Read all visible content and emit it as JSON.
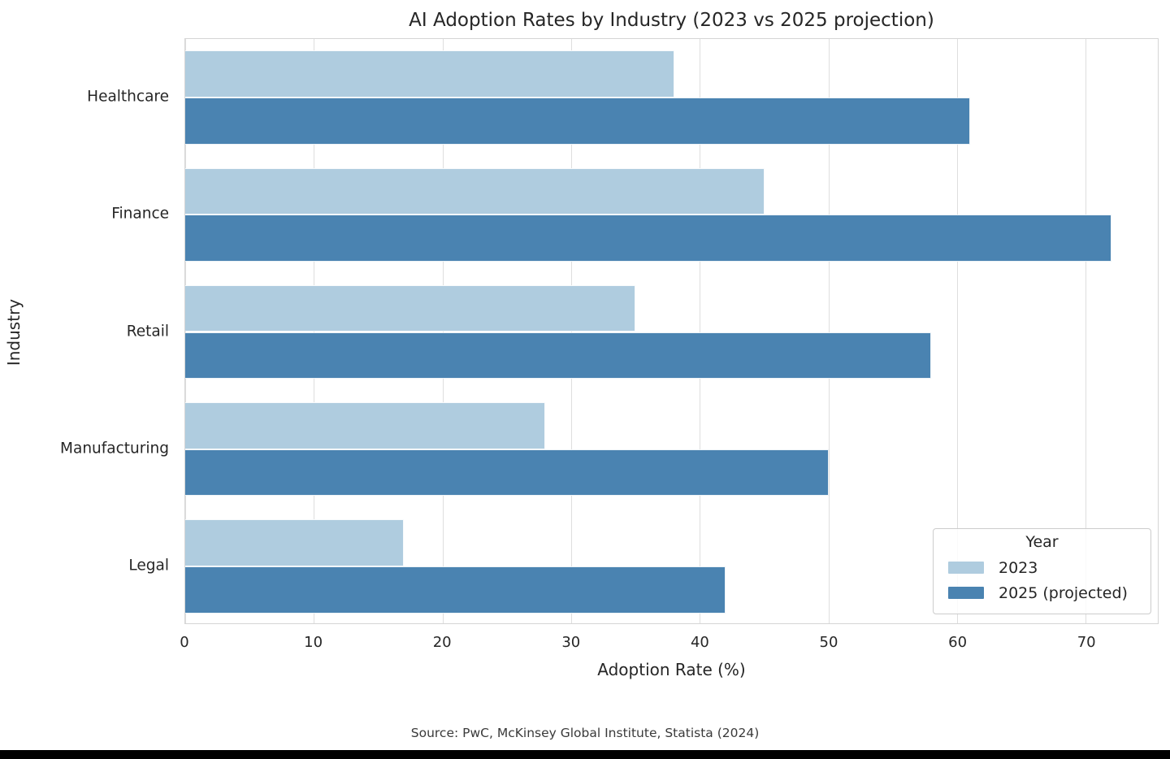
{
  "page": {
    "source_note": "Source: PwC, McKinsey Global Institute, Statista (2024)"
  },
  "chart_data": {
    "type": "bar",
    "orientation": "horizontal",
    "title": "AI Adoption Rates by Industry (2023 vs 2025 projection)",
    "xlabel": "Adoption Rate (%)",
    "ylabel": "Industry",
    "categories": [
      "Healthcare",
      "Finance",
      "Retail",
      "Manufacturing",
      "Legal"
    ],
    "series": [
      {
        "name": "2023",
        "color": "#afccdf",
        "values": [
          38,
          45,
          35,
          28,
          17
        ]
      },
      {
        "name": "2025 (projected)",
        "color": "#4a83b1",
        "values": [
          61,
          72,
          58,
          50,
          42
        ]
      }
    ],
    "xlim": [
      0,
      75.6
    ],
    "xticks": [
      0,
      10,
      20,
      30,
      40,
      50,
      60,
      70
    ],
    "grid": "vertical-gridlines",
    "legend": {
      "title": "Year",
      "position": "lower right"
    }
  }
}
